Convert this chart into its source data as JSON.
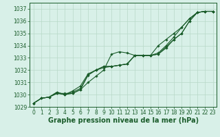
{
  "background_color": "#d8f0e8",
  "grid_color": "#b8d8c8",
  "line_color": "#1a5c2a",
  "marker_color": "#1a5c2a",
  "xlabel": "Graphe pression niveau de la mer (hPa)",
  "ylim": [
    1029,
    1037.5
  ],
  "xlim": [
    -0.5,
    23.5
  ],
  "yticks": [
    1029,
    1030,
    1031,
    1032,
    1033,
    1034,
    1035,
    1036,
    1037
  ],
  "xticks": [
    0,
    1,
    2,
    3,
    4,
    5,
    6,
    7,
    8,
    9,
    10,
    11,
    12,
    13,
    14,
    15,
    16,
    17,
    18,
    19,
    20,
    21,
    22,
    23
  ],
  "series": [
    {
      "x": [
        0,
        1,
        2,
        3,
        4,
        5,
        6,
        7,
        8,
        9,
        10,
        11,
        12,
        13,
        14,
        15,
        16,
        17,
        18,
        19,
        20,
        21,
        22,
        23
      ],
      "y": [
        1029.3,
        1029.7,
        1029.8,
        1030.1,
        1030.1,
        1030.1,
        1030.4,
        1031.0,
        1031.5,
        1032.0,
        1033.3,
        1033.5,
        1033.4,
        1033.2,
        1033.2,
        1033.2,
        1033.3,
        1033.8,
        1034.5,
        1035.0,
        1036.0,
        1036.7,
        1036.8,
        1036.8
      ]
    },
    {
      "x": [
        0,
        1,
        2,
        3,
        4,
        5,
        6,
        7,
        8,
        9,
        10,
        11,
        12,
        13,
        14,
        15,
        16,
        17,
        18,
        19,
        20,
        21,
        22,
        23
      ],
      "y": [
        1029.3,
        1029.7,
        1029.8,
        1030.1,
        1030.0,
        1030.2,
        1030.5,
        1031.6,
        1032.0,
        1032.3,
        1032.3,
        1032.4,
        1032.5,
        1033.2,
        1033.2,
        1033.2,
        1033.4,
        1034.0,
        1034.7,
        1035.5,
        1036.2,
        1036.7,
        1036.8,
        1036.8
      ]
    },
    {
      "x": [
        0,
        1,
        2,
        3,
        4,
        5,
        6,
        7,
        8,
        9,
        10,
        11,
        12,
        13,
        14,
        15,
        16,
        17,
        18,
        19,
        20,
        21,
        22,
        23
      ],
      "y": [
        1029.3,
        1029.7,
        1029.8,
        1030.2,
        1030.0,
        1030.3,
        1030.7,
        1031.7,
        1032.0,
        1032.3,
        1032.3,
        1032.4,
        1032.5,
        1033.2,
        1033.2,
        1033.2,
        1033.3,
        1033.9,
        1034.5,
        1035.0,
        1036.0,
        1036.7,
        1036.8,
        1036.8
      ]
    },
    {
      "x": [
        0,
        1,
        2,
        3,
        4,
        5,
        6,
        7,
        8,
        9,
        10,
        11,
        12,
        13,
        14,
        15,
        16,
        17,
        18,
        19,
        20,
        21,
        22,
        23
      ],
      "y": [
        1029.3,
        1029.7,
        1029.8,
        1030.2,
        1030.0,
        1030.1,
        1030.4,
        1031.6,
        1032.0,
        1032.2,
        1032.3,
        1032.4,
        1032.5,
        1033.2,
        1033.2,
        1033.2,
        1034.0,
        1034.5,
        1035.0,
        1035.5,
        1036.2,
        1036.7,
        1036.8,
        1036.8
      ]
    }
  ],
  "tick_fontsize": 5.5,
  "label_fontsize": 7.0,
  "label_fontweight": "bold"
}
